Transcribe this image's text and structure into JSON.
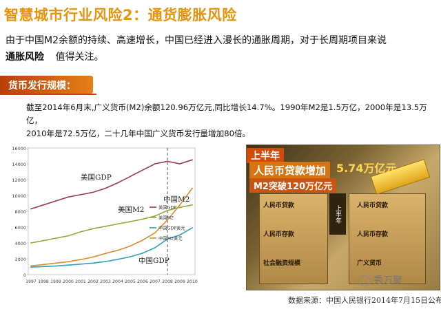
{
  "title": "智慧城市行业风险2：通货膨胀风险",
  "intro": {
    "line1": "由于中国M2余额的持续、高速增长，中国已经进入漫长的通胀周期，对于长周期项目来说",
    "bold": "通胀风险",
    "rest": "值得关注。"
  },
  "section_tag": "货币发行规模：",
  "body_text": {
    "line1": "截至2014年6月末,广义货币(M2)余额120.96万亿元,同比增长14.7%。1990年M2是1.5万亿，2000年是13.5万亿，",
    "line2": "2010年是72.5万亿，二十几年中国广义货币发行量增加80倍。"
  },
  "chart_data": {
    "type": "line",
    "x": [
      "1997",
      "1998",
      "1999",
      "2000",
      "2001",
      "2002",
      "2003",
      "2004",
      "2005",
      "2006",
      "2007",
      "2008",
      "2009",
      "2010"
    ],
    "ylim": [
      0,
      16000
    ],
    "yticks": [
      "0",
      "2000",
      "4000",
      "6000",
      "8000",
      "10000",
      "12000",
      "14000",
      "16000"
    ],
    "series": [
      {
        "name": "美国GDP",
        "color": "#9c3a52",
        "values": [
          8300,
          8800,
          9300,
          9800,
          10100,
          10400,
          10900,
          11600,
          12400,
          13200,
          14000,
          14300,
          14000,
          14500
        ]
      },
      {
        "name": "美国M2",
        "color": "#9aa53a",
        "values": [
          4000,
          4300,
          4600,
          4900,
          5400,
          5800,
          6100,
          6400,
          6700,
          7000,
          7400,
          8100,
          8500,
          8800
        ]
      },
      {
        "name": "中国GDP美元",
        "color": "#2fa0b5",
        "values": [
          950,
          1020,
          1080,
          1200,
          1320,
          1450,
          1640,
          1930,
          2250,
          2700,
          3400,
          4500,
          5000,
          5900
        ]
      },
      {
        "name": "中国M2美元",
        "color": "#d98e2a",
        "values": [
          1100,
          1270,
          1450,
          1630,
          1900,
          2220,
          2670,
          3070,
          3610,
          4350,
          5280,
          6900,
          8800,
          10900
        ]
      }
    ],
    "annotations": [
      "美国GDP",
      "中国M2",
      "美国M2",
      "中国GDP"
    ],
    "legend": "right",
    "dashed_line_at": "2008"
  },
  "photo": {
    "h1": "上半年",
    "h2": "人民币贷款增加",
    "h3": "5.74万亿元",
    "h4": "M2突破120万亿元",
    "cell1": "人民币贷款",
    "cell2": "人民币存款",
    "cell3": "社会融资规模",
    "cell4": "人民币贷款",
    "cell5": "人民币存款",
    "cell6": "广义货币"
  },
  "watermark": "秀万聚",
  "source": "数据来源：中国人民银行2014年7月15日公布"
}
